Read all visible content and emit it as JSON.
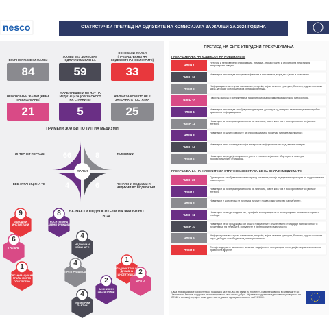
{
  "header": {
    "logo": "nesco",
    "title": "СТАТИСТИЧКИ ПРЕГЛЕД НА ОДЛУКИТЕ НА КОМИСИЈАТА ЗА ЖАЛБИ ЗА 2024 ГОДИНА"
  },
  "stats": [
    {
      "label": "ВКУПНО ПРИМЕНИ ЖАЛБИ",
      "value": 84
    },
    {
      "label": "ЖАЛБИ БЕЗ ДОНЕСЕНИ ОДЛУКИ И МИСЛЕЊА",
      "value": 59
    },
    {
      "label": "ОСНОВАНИ ЖАЛБИ (ПРЕКРШУВАЊА НА КОДЕКСОТ НА НОВИНАРИТЕ)",
      "value": 33
    },
    {
      "label": "НЕОСНОВАНИ ЖАЛБИ (НЕМА ПРЕКРШУВАЊЕ)",
      "value": 21
    },
    {
      "label": "ЖАЛБИ РЕШЕНИ ПО ПАТ НА МЕДИЈАЦИЈА (СОГЛАСНОСТ НА СТРАНИТЕ)",
      "value": 5
    },
    {
      "label": "ЖАЛБИ ЗА КОИШТО НЕ Е ЗАПОЧНАТА ПОСТАПКА",
      "value": 25
    }
  ],
  "media": {
    "title": "ПРИМЕНИ ЖАЛБИ ПО ТИП НА МЕДИУМИ",
    "center": "ЖАЛБИ",
    "items": [
      {
        "label": "ИНТЕРНЕТ ПОРТАЛИ",
        "value": 66
      },
      {
        "label": "ТЕЛЕВИЗИИ",
        "value": 8
      },
      {
        "label": "ВЕБ-СТРАНИЦИ НА ТВ",
        "value": 4
      },
      {
        "label": "ПЕЧАТЕНИ МЕДИУМИ И МЕДИУМИ ВО ВОДЕЛАЈНИ",
        "value": 6
      }
    ]
  },
  "submitters": {
    "title": "НАЈЧЕСТИ ПОДНОСИТЕЛИ НА ЖАЛБИ ВО 2024",
    "items": [
      {
        "label": "ЗАВОДИ И ИНСТИТУЦИИ",
        "value": 9
      },
      {
        "label": "НОСИТЕЛИ НА ЈАВНИ ФУНКЦИИ",
        "value": 8
      },
      {
        "label": "ГРАЃАНИ",
        "value": 6
      },
      {
        "label": "МЕДИУМИ И НОВИНАРИ",
        "value": 4
      },
      {
        "label": "ОРГАНИЗАЦИИ НА ГРАЃАНСКОТО ОПШТЕСТВО",
        "value": 1
      },
      {
        "label": "ПРЕТПРИЈАТИЈА",
        "value": 4
      },
      {
        "label": "ПОЛИТИЧКИ ПАРТИИ",
        "value": 4
      },
      {
        "label": "АНОНИМНИ ЗАСТАПНИЦИ",
        "value": 2
      },
      {
        "label": "ВЛАДИНИ ТЕЛА ВО ДРЖАВНА ИНСТИТУЦИЈА",
        "value": 1
      },
      {
        "label": "ДРУГО",
        "value": 2
      }
    ]
  },
  "overview": {
    "title": "ПРЕГЛЕД НА СИТЕ УТВРДЕНИ ПРЕКРШУВАЊА",
    "sections": [
      {
        "title": "ПРЕКРШУВАЊА НА КОДЕКСОТ НА НОВИНАРИТЕ",
        "rows": [
          {
            "article": "ЧЛЕН 1",
            "text": "Неточни и непроверени информации, немање „втора страна“ и отсуство на нејасни или непроверени наводи."
          },
          {
            "article": "ЧЛЕН 13",
            "text": "Новинарот не смее да пишува врз фактите и мислењата, мора да е јасно и комплетно."
          },
          {
            "article": "ЧЛЕН 3",
            "text": "Информациите во случаи на насилие, несреќи, војни, семејни трагедии, болести, судски постапки мора да бидат ослободени од сензационализам."
          },
          {
            "article": "ЧЛЕН 10",
            "text": "Говор на омраза и поттикнување насилство или дискриминација кон која било основа."
          },
          {
            "article": "ЧЛЕН 4",
            "text": "Новинарот не смее да ги објавува податоците, доколку е од интерес, не поттикнува непотребно чувство на информацијата."
          },
          {
            "article": "ЧЛЕН 11",
            "text": "Новинарот ја почитува приватноста на личноста, освен кога тоа е во спротивност со јавниот интерес."
          },
          {
            "article": "ЧЛЕН 8",
            "text": "Новинарот ги штити изворите на информации и ја почитува нивната анонимност."
          },
          {
            "article": "ЧЛЕН 14",
            "text": "Новинарот не го поставува својот интерес на информирањето над јавниот интерес."
          },
          {
            "article": "ЧЛЕН 2",
            "text": "Новинарот мора да ја негува културата и етиката на јавниот збор и да ги почитува професионалните стандарди."
          }
        ]
      },
      {
        "title": "ПРЕКРШУВАЊА НА НАСОКИТЕ ЗА СТРУЧНО ИЗВЕСТУВАЊЕ НА ОНЛАЈН МЕДИУМИТЕ",
        "rows": [
          {
            "article": "ЧЛЕН 20",
            "text": "Одговорност за објавените коментари од читатели; онлајн медиумот е одговорен за содржините на коментарите."
          },
          {
            "article": "ЧЛЕН 7",
            "text": "Новинарот ја почитува приватноста на личноста, освен кога тоа е во спротивност со јавниот интерес."
          },
          {
            "article": "ЧЛЕН 3",
            "text": "Новинарот е должен да ги почитува личните права и достоинство на граѓаните."
          },
          {
            "article": "ЧЛЕН 11",
            "text": "Новинарот нема да создава ниту прифаќа информации што ги загрозуваат човековите права и слободи."
          },
          {
            "article": "ЧЛЕН 10",
            "text": "Новинарот ќе се придржува кон општо прифатените општествени стандарди на пристојност и почитување на етничките, културните и религиозните различности."
          },
          {
            "article": "ЧЛЕН 9",
            "text": "Информациите во случаи на насилие, несреќи, војни, семејни трагедии, болести, судски постапки мора да бидат ослободени од сензационализам."
          },
          {
            "article": "ЧЛЕН 8",
            "text": "Онлајн медиумите активно се залагаат за дијалог и толеранција, почитувајќи ги различностите и правото на другите."
          }
        ]
      }
    ]
  },
  "footer": {
    "text": "Оваа инфографика е изработена со поддршка од УНЕСКО, во рамки на проектот „Градење доверба во медиумите во Југоисточна Европа: поддршка на новинарството како општо добро“. Нејзината содржина е единствена одговорност на СЕММ и во никој случај не може да се смета дека ги одразува ставовите на УНЕСКО."
  }
}
